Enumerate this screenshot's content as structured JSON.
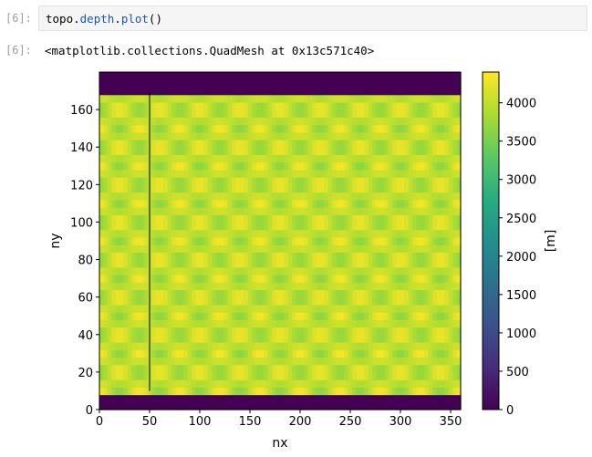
{
  "cell": {
    "in_prompt": "[6]:",
    "out_prompt": "[6]:",
    "code": {
      "obj": "topo",
      "dot1": ".",
      "attr1": "depth",
      "dot2": ".",
      "attr2": "plot",
      "parens": "()"
    },
    "output_text": "<matplotlib.collections.QuadMesh at 0x13c571c40>"
  },
  "chart_data": {
    "type": "heatmap",
    "xlabel": "nx",
    "ylabel": "ny",
    "xlim": [
      0,
      360
    ],
    "ylim": [
      0,
      180
    ],
    "xticks": [
      0,
      50,
      100,
      150,
      200,
      250,
      300,
      350
    ],
    "yticks": [
      0,
      20,
      40,
      60,
      80,
      100,
      120,
      140,
      160
    ],
    "colormap": "viridis",
    "colorbar": {
      "label": "[m]",
      "range": [
        0,
        4400
      ],
      "ticks": [
        0,
        500,
        1000,
        1500,
        2000,
        2500,
        3000,
        3500,
        4000
      ]
    },
    "field": {
      "land_rows_bottom": [
        0,
        10
      ],
      "land_rows_top": [
        170,
        180
      ],
      "ocean_mean_depth": 4000,
      "bump_amplitude": 350,
      "bump_period_x": 40,
      "bump_period_y": 20,
      "ridge_x": 50
    },
    "colors": {
      "land": "#440154",
      "ridge_line": "#000000"
    }
  }
}
